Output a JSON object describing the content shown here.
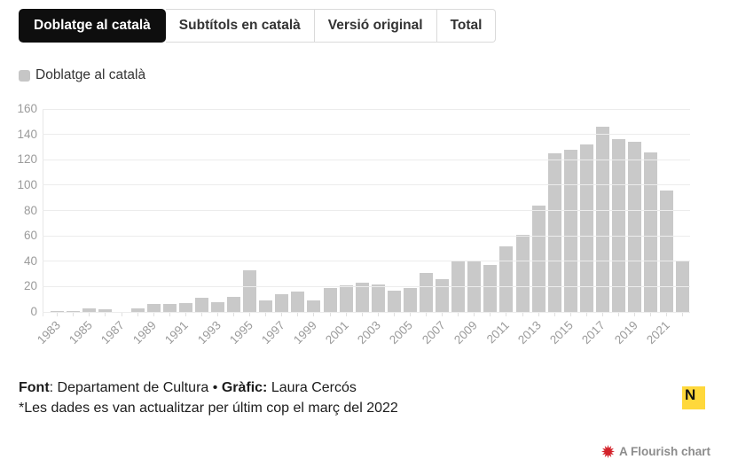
{
  "tabs": {
    "items": [
      {
        "label": "Doblatge al català",
        "selected": true
      },
      {
        "label": "Subtítols en català",
        "selected": false
      },
      {
        "label": "Versió original",
        "selected": false
      },
      {
        "label": "Total",
        "selected": false
      }
    ]
  },
  "legend": {
    "label": "Doblatge al català",
    "swatch_color": "#c6c6c6"
  },
  "chart_data": {
    "type": "bar",
    "title": "",
    "series_name": "Doblatge al català",
    "categories": [
      1983,
      1984,
      1985,
      1986,
      1987,
      1988,
      1989,
      1990,
      1991,
      1992,
      1993,
      1994,
      1995,
      1996,
      1997,
      1998,
      1999,
      2000,
      2001,
      2002,
      2003,
      2004,
      2005,
      2006,
      2007,
      2008,
      2009,
      2010,
      2011,
      2012,
      2013,
      2014,
      2015,
      2016,
      2017,
      2018,
      2019,
      2020,
      2021,
      2022
    ],
    "values": [
      1,
      1,
      3,
      2,
      0,
      3,
      6,
      6,
      7,
      11,
      8,
      12,
      33,
      9,
      14,
      16,
      9,
      19,
      21,
      23,
      22,
      17,
      19,
      31,
      26,
      40,
      40,
      37,
      52,
      61,
      84,
      125,
      128,
      132,
      146,
      136,
      134,
      126,
      96,
      40
    ],
    "x_tick_labels": [
      "1983",
      "1985",
      "1987",
      "1989",
      "1991",
      "1993",
      "1995",
      "1997",
      "1999",
      "2001",
      "2003",
      "2005",
      "2007",
      "2009",
      "2011",
      "2013",
      "2015",
      "2017",
      "2019",
      "2021"
    ],
    "xlabel": "",
    "ylabel": "",
    "ylim": [
      0,
      160
    ],
    "y_tick_step": 20,
    "grid": "horizontal",
    "bar_color": "#c9c9c9",
    "axis_label_color": "#9b9b9b",
    "legend_position": "top-left"
  },
  "footer": {
    "font_label": "Font",
    "font_value": ": Departament de Cultura",
    "separator": " • ",
    "grafic_label": "Gràfic:",
    "grafic_value": " Laura Cercós",
    "note": "*Les dades es van actualitzar per últim cop el març del 2022"
  },
  "branding": {
    "logo_letter": "N",
    "logo_color": "#ffd83b",
    "flourish_credit": "A Flourish chart",
    "flourish_icon_color": "#d3222a"
  }
}
